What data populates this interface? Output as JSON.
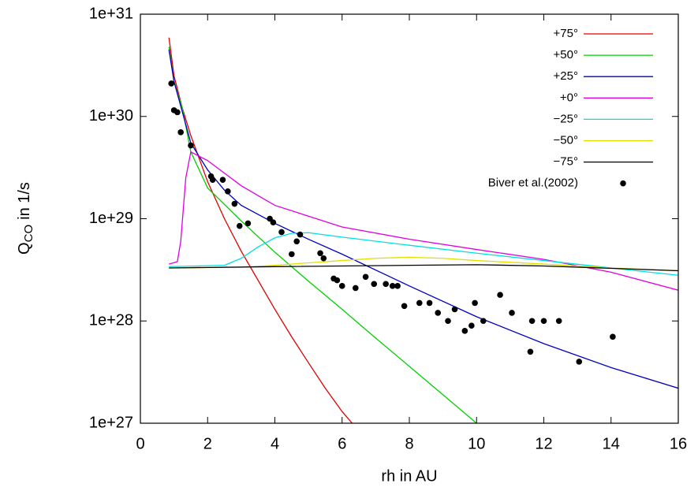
{
  "chart_data": {
    "type": "line",
    "xlabel": "rh in AU",
    "ylabel": {
      "text": "Q",
      "sub": "CO",
      "rest": "in 1/s"
    },
    "xlim": [
      0,
      16
    ],
    "xticks": [
      0,
      2,
      4,
      6,
      8,
      10,
      12,
      14,
      16
    ],
    "ylim": [
      1e+27,
      1e+31
    ],
    "ylog": true,
    "yticks": [
      {
        "value": 1e+27,
        "label": "1e+27"
      },
      {
        "value": 1e+28,
        "label": "1e+28"
      },
      {
        "value": 1e+29,
        "label": "1e+29"
      },
      {
        "value": 1e+30,
        "label": "1e+30"
      },
      {
        "value": 1e+31,
        "label": "1e+31"
      }
    ],
    "legend": "top-right",
    "series": [
      {
        "name": "+75°",
        "color": "#e00000",
        "marker": "line",
        "x": [
          0.85,
          1.0,
          1.25,
          1.5,
          2.0,
          2.5,
          3.0,
          3.5,
          4.0,
          4.5,
          5.0,
          5.5,
          6.0,
          6.3
        ],
        "values": [
          5.9e+30,
          2.5e+30,
          1.2e+30,
          6.5e+29,
          2.3e+29,
          1e+29,
          4.8e+28,
          2.5e+28,
          1.3e+28,
          7e+27,
          3.9e+27,
          2.2e+27,
          1.3e+27,
          1e+27
        ]
      },
      {
        "name": "+50°",
        "color": "#00d000",
        "marker": "line",
        "x": [
          0.85,
          1.0,
          1.25,
          1.5,
          2.0,
          3.0,
          4.0,
          5.0,
          6.0,
          7.0,
          8.0,
          9.0,
          10.0
        ],
        "values": [
          4.8e+30,
          2.2e+30,
          1.2e+30,
          4.5e+29,
          2e+29,
          9.5e+28,
          4.7e+28,
          2.45e+28,
          1.3e+28,
          6.8e+27,
          3.6e+27,
          1.9e+27,
          1e+27
        ]
      },
      {
        "name": "+25°",
        "color": "#0000c0",
        "marker": "line",
        "x": [
          0.85,
          1.0,
          1.25,
          1.5,
          2.0,
          2.5,
          3.0,
          4.0,
          5.0,
          6.0,
          8.0,
          10.0,
          12.0,
          14.0,
          16.0
        ],
        "values": [
          4.5e+30,
          2.2e+30,
          1.1e+30,
          5.5e+29,
          3e+29,
          1.9e+29,
          1.35e+29,
          9e+28,
          6.3e+28,
          4.5e+28,
          2.2e+28,
          1.1e+28,
          6e+27,
          3.5e+27,
          2.2e+27
        ]
      },
      {
        "name": "+0°",
        "color": "#e000e0",
        "marker": "line",
        "x": [
          0.85,
          1.1,
          1.2,
          1.35,
          1.5,
          2.0,
          3.0,
          4.0,
          6.0,
          8.0,
          10.0,
          12.0,
          14.0,
          16.0
        ],
        "values": [
          3.6e+28,
          3.8e+28,
          6e+28,
          2.5e+29,
          4.5e+29,
          3.7e+29,
          2.1e+29,
          1.35e+29,
          8.3e+28,
          6.3e+28,
          5e+28,
          4e+28,
          3e+28,
          2e+28
        ]
      },
      {
        "name": "−25°",
        "color": "#00e0e0",
        "marker": "line",
        "x": [
          0.85,
          2.5,
          3.0,
          3.5,
          4.0,
          4.5,
          5.0,
          6.0,
          8.0,
          10.0,
          12.0,
          14.0,
          16.0
        ],
        "values": [
          3.4e+28,
          3.5e+28,
          4.1e+28,
          5.3e+28,
          6.5e+28,
          7.2e+28,
          7.3e+28,
          6.6e+28,
          5.5e+28,
          4.6e+28,
          3.9e+28,
          3.3e+28,
          2.8e+28
        ]
      },
      {
        "name": "−50°",
        "color": "#e0e000",
        "marker": "line",
        "x": [
          0.85,
          3.0,
          4.0,
          5.0,
          6.0,
          7.0,
          8.0,
          9.0,
          10.0,
          12.0,
          14.0,
          16.0
        ],
        "values": [
          3.3e+28,
          3.35e+28,
          3.5e+28,
          3.7e+28,
          3.9e+28,
          4.1e+28,
          4.2e+28,
          4.1e+28,
          3.9e+28,
          3.6e+28,
          3.3e+28,
          3.1e+28
        ]
      },
      {
        "name": "−75°",
        "color": "#000000",
        "marker": "line",
        "x": [
          0.85,
          4.0,
          8.0,
          10.0,
          12.0,
          16.0
        ],
        "values": [
          3.3e+28,
          3.4e+28,
          3.5e+28,
          3.55e+28,
          3.45e+28,
          3.1e+28
        ]
      },
      {
        "name": "Biver et al.(2002)",
        "color": "#000000",
        "marker": "dot",
        "x": [
          0.92,
          1.0,
          1.1,
          1.2,
          1.5,
          2.1,
          2.15,
          2.45,
          2.6,
          2.8,
          2.95,
          3.2,
          3.85,
          3.95,
          4.2,
          4.5,
          4.65,
          4.75,
          5.35,
          5.45,
          5.75,
          5.85,
          6.0,
          6.4,
          6.7,
          6.95,
          7.3,
          7.5,
          7.65,
          7.85,
          8.3,
          8.6,
          8.85,
          9.15,
          9.35,
          9.65,
          9.85,
          9.95,
          10.2,
          10.7,
          11.05,
          11.6,
          11.65,
          12.0,
          12.45,
          13.05,
          14.05
        ],
        "values": [
          2.1e+30,
          1.15e+30,
          1.1e+30,
          7e+29,
          5.2e+29,
          2.6e+29,
          2.4e+29,
          2.4e+29,
          1.85e+29,
          1.4e+29,
          8.5e+28,
          9e+28,
          1e+29,
          9.2e+28,
          7.4e+28,
          4.5e+28,
          6e+28,
          7e+28,
          4.6e+28,
          4.1e+28,
          2.6e+28,
          2.5e+28,
          2.2e+28,
          2.1e+28,
          2.7e+28,
          2.3e+28,
          2.3e+28,
          2.2e+28,
          2.2e+28,
          1.4e+28,
          1.5e+28,
          1.5e+28,
          1.2e+28,
          1e+28,
          1.3e+28,
          8e+27,
          9e+27,
          1.5e+28,
          1e+28,
          1.8e+28,
          1.2e+28,
          5e+27,
          1e+28,
          1e+28,
          1e+28,
          4e+27,
          7e+27
        ]
      }
    ]
  }
}
